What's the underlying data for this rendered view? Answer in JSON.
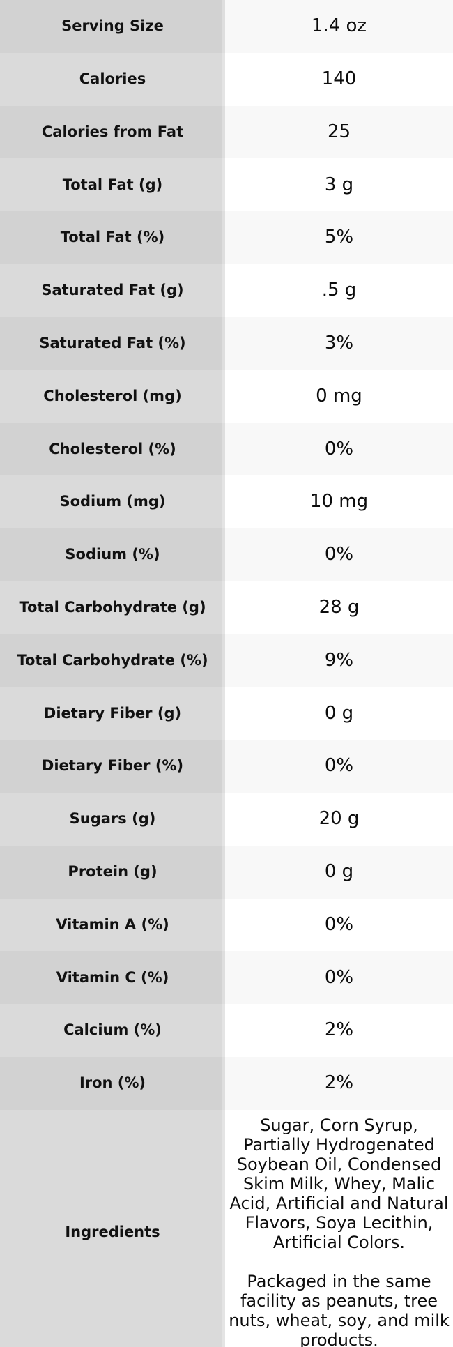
{
  "colors": {
    "label_col_odd": "#d2d2d2",
    "label_col_even": "#dadada",
    "value_col_odd": "#f8f8f8",
    "value_col_even": "#ffffff",
    "label_text": "#111111",
    "value_text": "#0c0c0c"
  },
  "rows": [
    {
      "label": "Serving Size",
      "value": "1.4 oz"
    },
    {
      "label": "Calories",
      "value": "140"
    },
    {
      "label": "Calories from Fat",
      "value": "25"
    },
    {
      "label": "Total Fat (g)",
      "value": "3 g"
    },
    {
      "label": "Total Fat (%)",
      "value": "5%"
    },
    {
      "label": "Saturated Fat (g)",
      "value": ".5 g"
    },
    {
      "label": "Saturated Fat (%)",
      "value": "3%"
    },
    {
      "label": "Cholesterol (mg)",
      "value": "0 mg"
    },
    {
      "label": "Cholesterol (%)",
      "value": "0%"
    },
    {
      "label": "Sodium (mg)",
      "value": "10 mg"
    },
    {
      "label": "Sodium (%)",
      "value": "0%"
    },
    {
      "label": "Total Carbohydrate (g)",
      "value": "28 g"
    },
    {
      "label": "Total Carbohydrate (%)",
      "value": "9%"
    },
    {
      "label": "Dietary Fiber (g)",
      "value": "0 g"
    },
    {
      "label": "Dietary Fiber (%)",
      "value": "0%"
    },
    {
      "label": "Sugars (g)",
      "value": "20 g"
    },
    {
      "label": "Protein (g)",
      "value": "0 g"
    },
    {
      "label": "Vitamin A (%)",
      "value": "0%"
    },
    {
      "label": "Vitamin C (%)",
      "value": "0%"
    },
    {
      "label": "Calcium (%)",
      "value": "2%"
    },
    {
      "label": "Iron (%)",
      "value": "2%"
    }
  ],
  "ingredients": {
    "label": "Ingredients",
    "paragraph_1": "Sugar, Corn Syrup, Partially Hydrogenated Soybean Oil, Condensed Skim Milk, Whey, Malic Acid, Artificial and Natural Flavors, Soya Lecithin, Artificial Colors.",
    "paragraph_2": "Packaged in the same facility as peanuts, tree nuts, wheat, soy, and milk products."
  }
}
